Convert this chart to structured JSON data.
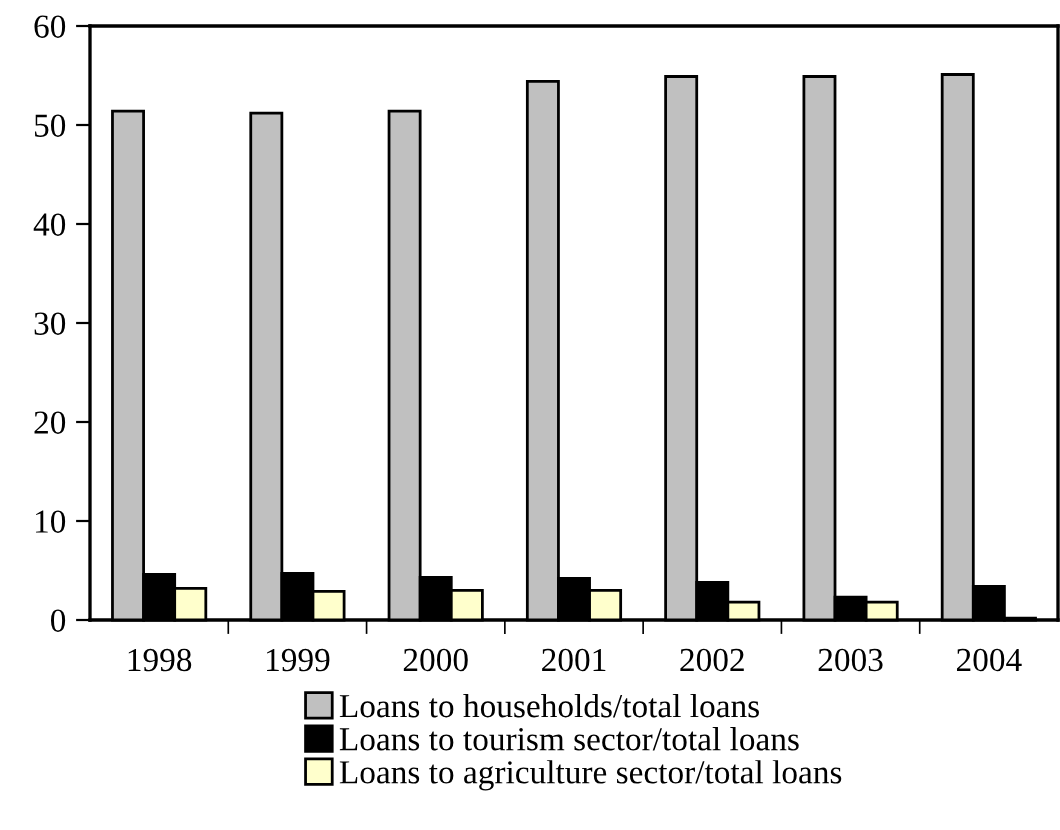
{
  "chart_data": {
    "type": "bar",
    "categories": [
      "1998",
      "1999",
      "2000",
      "2001",
      "2002",
      "2003",
      "2004"
    ],
    "series": [
      {
        "name": "Loans to households/total loans",
        "color": "#c0c0c0",
        "values": [
          51.4,
          51.2,
          51.4,
          54.4,
          54.9,
          54.9,
          55.1
        ]
      },
      {
        "name": "Loans to tourism sector/total loans",
        "color": "#000000",
        "values": [
          4.6,
          4.7,
          4.3,
          4.2,
          3.8,
          2.3,
          3.4
        ]
      },
      {
        "name": "Loans to agriculture sector/total loans",
        "color": "#ffffcc",
        "values": [
          3.2,
          2.9,
          3.0,
          3.0,
          1.8,
          1.8,
          0.2
        ]
      }
    ],
    "ylim": [
      0,
      60
    ],
    "yticks": [
      0,
      10,
      20,
      30,
      40,
      50,
      60
    ],
    "grid": false,
    "legend": "bottom"
  }
}
